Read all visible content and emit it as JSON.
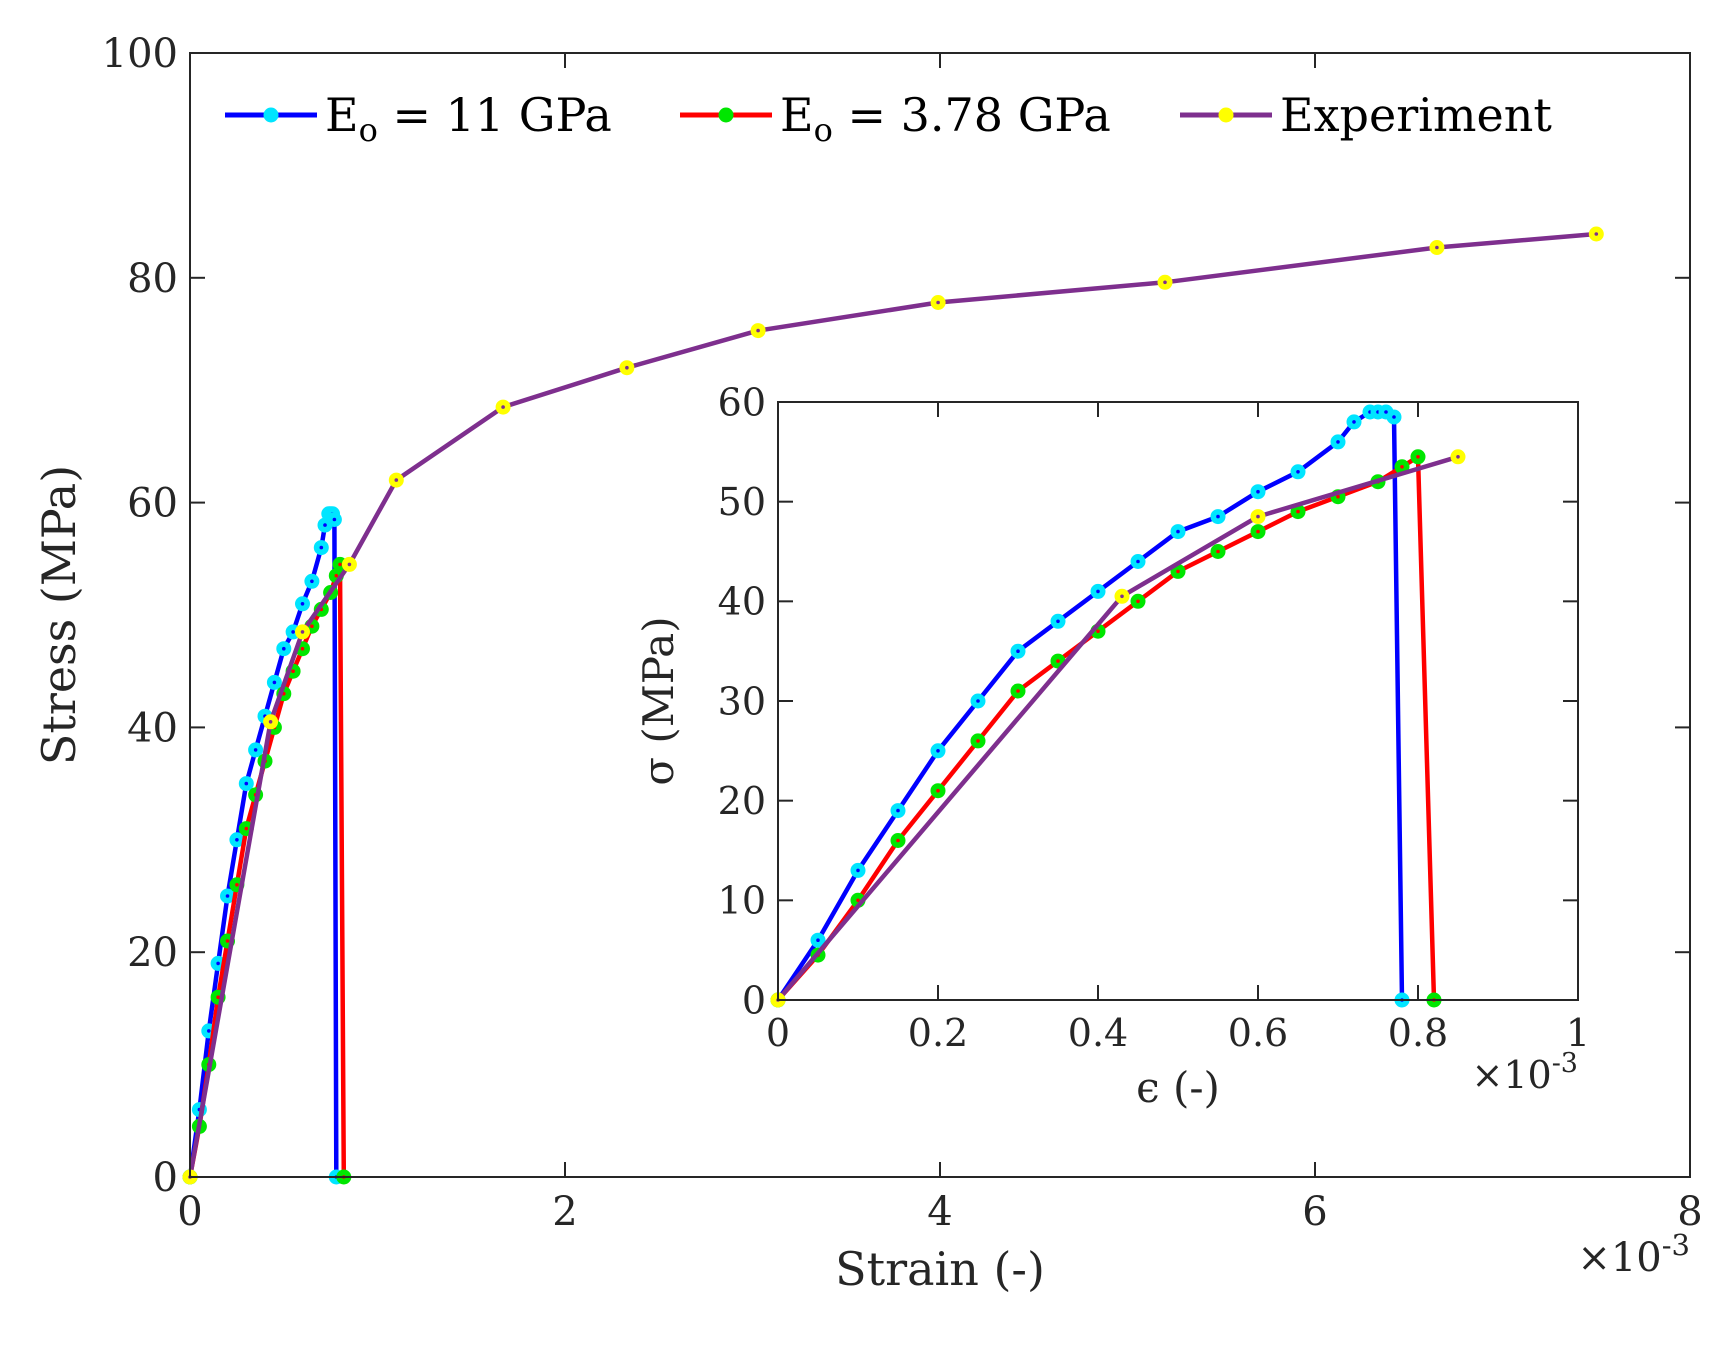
{
  "chart_data": [
    {
      "id": "main",
      "type": "line",
      "xlabel": "Strain (-)",
      "ylabel": "Stress (MPa)",
      "x_exponent": "×10",
      "x_exponent_power": "-3",
      "xlim": [
        0,
        8
      ],
      "ylim": [
        0,
        100
      ],
      "xticks": [
        "0",
        "2",
        "4",
        "6",
        "8"
      ],
      "yticks": [
        "0",
        "20",
        "40",
        "60",
        "80",
        "100"
      ],
      "grid": false,
      "legend_placement": "top",
      "legend": [
        {
          "label_main": "E",
          "label_sub": "o",
          "label_rest": " = 11 GPa",
          "series": "e11"
        },
        {
          "label_main": "E",
          "label_sub": "o",
          "label_rest": " = 3.78 GPa",
          "series": "e378"
        },
        {
          "label_main": "Experiment",
          "label_sub": "",
          "label_rest": "",
          "series": "exp"
        }
      ],
      "series": [
        {
          "key": "e11",
          "line_color": "#0000ff",
          "marker_color": "#00e5ff",
          "x": [
            0,
            0.05,
            0.1,
            0.15,
            0.2,
            0.25,
            0.3,
            0.35,
            0.4,
            0.45,
            0.5,
            0.55,
            0.6,
            0.65,
            0.7,
            0.72,
            0.74,
            0.75,
            0.76,
            0.77,
            0.78
          ],
          "y": [
            0,
            6,
            13,
            19,
            25,
            30,
            35,
            38,
            41,
            44,
            47,
            48.5,
            51,
            53,
            56,
            58,
            59,
            59,
            59,
            58.5,
            0
          ]
        },
        {
          "key": "e378",
          "line_color": "#ff0000",
          "marker_color": "#00e600",
          "x": [
            0,
            0.05,
            0.1,
            0.15,
            0.2,
            0.25,
            0.3,
            0.35,
            0.4,
            0.45,
            0.5,
            0.55,
            0.6,
            0.65,
            0.7,
            0.75,
            0.78,
            0.8,
            0.82
          ],
          "y": [
            0,
            4.5,
            10,
            16,
            21,
            26,
            31,
            34,
            37,
            40,
            43,
            45,
            47,
            49,
            50.5,
            52,
            53.5,
            54.5,
            0
          ]
        },
        {
          "key": "exp",
          "line_color": "#7e2f8e",
          "marker_color": "#ffff00",
          "x": [
            0,
            0.43,
            0.6,
            0.85,
            1.1,
            1.67,
            2.33,
            3.03,
            3.99,
            5.2,
            6.65,
            7.5
          ],
          "y": [
            0,
            40.5,
            48.5,
            54.5,
            62,
            68.5,
            72,
            75.3,
            77.8,
            79.6,
            82.7,
            83.9
          ]
        }
      ]
    },
    {
      "id": "inset",
      "type": "line",
      "xlabel": "ϵ (-)",
      "ylabel": "σ (MPa)",
      "x_exponent": "×10",
      "x_exponent_power": "-3",
      "xlim": [
        0,
        1
      ],
      "ylim": [
        0,
        60
      ],
      "xticks": [
        "0",
        "0.2",
        "0.4",
        "0.6",
        "0.8",
        "1"
      ],
      "yticks": [
        "0",
        "10",
        "20",
        "30",
        "40",
        "50",
        "60"
      ],
      "grid": false,
      "series": [
        {
          "key": "e11",
          "line_color": "#0000ff",
          "marker_color": "#00e5ff",
          "x": [
            0,
            0.05,
            0.1,
            0.15,
            0.2,
            0.25,
            0.3,
            0.35,
            0.4,
            0.45,
            0.5,
            0.55,
            0.6,
            0.65,
            0.7,
            0.72,
            0.74,
            0.75,
            0.76,
            0.77,
            0.78
          ],
          "y": [
            0,
            6,
            13,
            19,
            25,
            30,
            35,
            38,
            41,
            44,
            47,
            48.5,
            51,
            53,
            56,
            58,
            59,
            59,
            59,
            58.5,
            0
          ]
        },
        {
          "key": "e378",
          "line_color": "#ff0000",
          "marker_color": "#00e600",
          "x": [
            0,
            0.05,
            0.1,
            0.15,
            0.2,
            0.25,
            0.3,
            0.35,
            0.4,
            0.45,
            0.5,
            0.55,
            0.6,
            0.65,
            0.7,
            0.75,
            0.78,
            0.8,
            0.82
          ],
          "y": [
            0,
            4.5,
            10,
            16,
            21,
            26,
            31,
            34,
            37,
            40,
            43,
            45,
            47,
            49,
            50.5,
            52,
            53.5,
            54.5,
            0
          ]
        },
        {
          "key": "exp",
          "line_color": "#7e2f8e",
          "marker_color": "#ffff00",
          "x": [
            0,
            0.43,
            0.6,
            0.85
          ],
          "y": [
            0,
            40.5,
            48.5,
            54.5
          ]
        }
      ]
    }
  ]
}
